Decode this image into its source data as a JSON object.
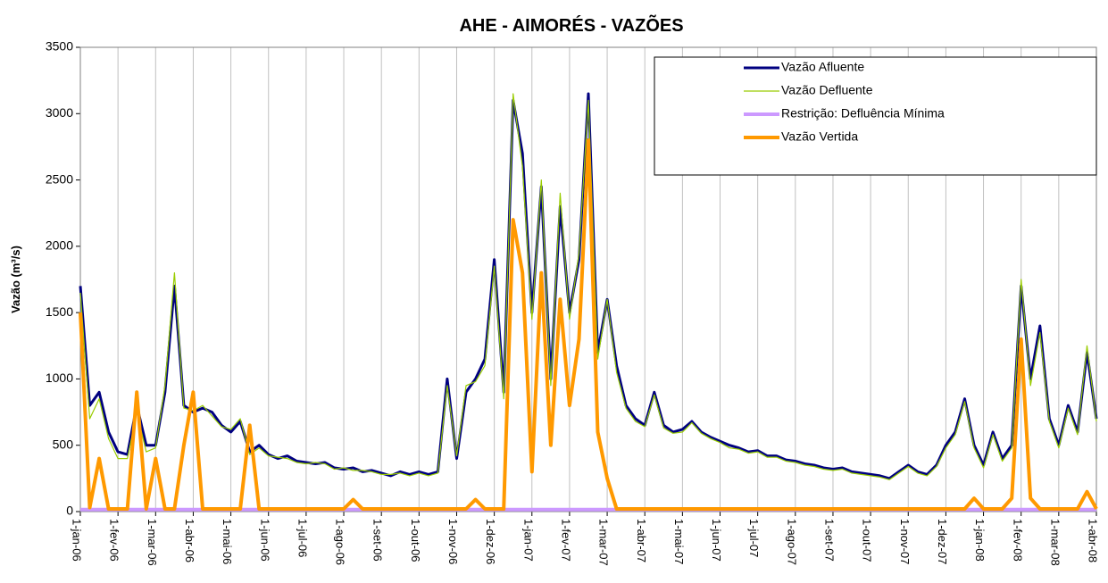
{
  "chart_data": {
    "type": "line",
    "title": "AHE - AIMORÉS - VAZÕES",
    "y_label": "Vazão (m³/s)",
    "categories": [
      "1-jan-06",
      null,
      null,
      null,
      "1-fev-06",
      null,
      null,
      null,
      "1-mar-06",
      null,
      null,
      null,
      "1-abr-06",
      null,
      null,
      null,
      "1-mai-06",
      null,
      null,
      null,
      "1-jun-06",
      null,
      null,
      null,
      "1-jul-06",
      null,
      null,
      null,
      "1-ago-06",
      null,
      null,
      null,
      "1-set-06",
      null,
      null,
      null,
      "1-out-06",
      null,
      null,
      null,
      "1-nov-06",
      null,
      null,
      null,
      "1-dez-06",
      null,
      null,
      null,
      "1-jan-07",
      null,
      null,
      null,
      "1-fev-07",
      null,
      null,
      null,
      "1-mar-07",
      null,
      null,
      null,
      "1-abr-07",
      null,
      null,
      null,
      "1-mai-07",
      null,
      null,
      null,
      "1-jun-07",
      null,
      null,
      null,
      "1-jul-07",
      null,
      null,
      null,
      "1-ago-07",
      null,
      null,
      null,
      "1-set-07",
      null,
      null,
      null,
      "1-out-07",
      null,
      null,
      null,
      "1-nov-07",
      null,
      null,
      null,
      "1-dez-07",
      null,
      null,
      null,
      "1-jan-08",
      null,
      null,
      null,
      "1-fev-08",
      null,
      null,
      null,
      "1-mar-08",
      null,
      null,
      null,
      "1-abr-08"
    ],
    "series": [
      {
        "name": "Vazão Afluente",
        "color": "#000080",
        "width": 3,
        "values": [
          1700,
          800,
          900,
          600,
          450,
          430,
          800,
          500,
          500,
          900,
          1700,
          800,
          750,
          780,
          750,
          650,
          600,
          680,
          450,
          500,
          430,
          400,
          420,
          380,
          370,
          360,
          370,
          330,
          320,
          330,
          300,
          310,
          290,
          270,
          300,
          280,
          300,
          280,
          300,
          1000,
          400,
          900,
          1000,
          1150,
          1900,
          900,
          3100,
          2700,
          1500,
          2450,
          1000,
          2300,
          1500,
          1900,
          3150,
          1200,
          1600,
          1100,
          800,
          700,
          650,
          900,
          650,
          600,
          620,
          680,
          600,
          560,
          530,
          500,
          480,
          450,
          460,
          420,
          420,
          390,
          380,
          360,
          350,
          330,
          320,
          330,
          300,
          290,
          280,
          270,
          250,
          300,
          350,
          300,
          280,
          350,
          500,
          600,
          850,
          500,
          350,
          600,
          400,
          500,
          1700,
          1000,
          1400,
          700,
          500,
          800,
          600,
          1200,
          700
        ]
      },
      {
        "name": "Vazão Defluente",
        "color": "#99cc00",
        "width": 1.2,
        "values": [
          1650,
          700,
          850,
          550,
          400,
          400,
          750,
          450,
          480,
          950,
          1800,
          780,
          760,
          800,
          720,
          640,
          620,
          700,
          430,
          480,
          420,
          410,
          400,
          370,
          360,
          370,
          360,
          320,
          330,
          310,
          310,
          300,
          280,
          280,
          290,
          270,
          290,
          270,
          290,
          950,
          420,
          950,
          980,
          1100,
          1850,
          850,
          3150,
          2600,
          1450,
          2500,
          950,
          2400,
          1450,
          1950,
          3100,
          1150,
          1600,
          1050,
          780,
          680,
          640,
          880,
          630,
          590,
          600,
          670,
          590,
          550,
          520,
          480,
          470,
          440,
          450,
          410,
          410,
          380,
          370,
          350,
          340,
          320,
          310,
          320,
          290,
          280,
          270,
          260,
          240,
          290,
          340,
          290,
          270,
          340,
          480,
          580,
          830,
          480,
          330,
          580,
          380,
          480,
          1750,
          950,
          1350,
          680,
          480,
          780,
          580,
          1250,
          680
        ]
      },
      {
        "name": "Restrição: Defluência Mínima",
        "color": "#cc99ff",
        "width": 4,
        "values": [
          15,
          15,
          15,
          15,
          15,
          15,
          15,
          15,
          15,
          15,
          15,
          15,
          15,
          15,
          15,
          15,
          15,
          15,
          15,
          15,
          15,
          15,
          15,
          15,
          15,
          15,
          15,
          15,
          15,
          15,
          15,
          15,
          15,
          15,
          15,
          15,
          15,
          15,
          15,
          15,
          15,
          15,
          15,
          15,
          15,
          15,
          15,
          15,
          15,
          15,
          15,
          15,
          15,
          15,
          15,
          15,
          15,
          15,
          15,
          15,
          15,
          15,
          15,
          15,
          15,
          15,
          15,
          15,
          15,
          15,
          15,
          15,
          15,
          15,
          15,
          15,
          15,
          15,
          15,
          15,
          15,
          15,
          15,
          15,
          15,
          15,
          15,
          15,
          15,
          15,
          15,
          15,
          15,
          15,
          15,
          15,
          15,
          15,
          15,
          15,
          15,
          15,
          15,
          15,
          15,
          15,
          15,
          15,
          15
        ]
      },
      {
        "name": "Vazão Vertida",
        "color": "#ff9900",
        "width": 4,
        "values": [
          1500,
          30,
          400,
          20,
          20,
          20,
          900,
          20,
          400,
          20,
          20,
          500,
          900,
          20,
          20,
          20,
          20,
          20,
          650,
          20,
          20,
          20,
          20,
          20,
          20,
          20,
          20,
          20,
          20,
          90,
          20,
          20,
          20,
          20,
          20,
          20,
          20,
          20,
          20,
          20,
          20,
          20,
          90,
          20,
          20,
          20,
          2200,
          1800,
          300,
          1800,
          500,
          1600,
          800,
          1300,
          2800,
          600,
          250,
          20,
          20,
          20,
          20,
          20,
          20,
          20,
          20,
          20,
          20,
          20,
          20,
          20,
          20,
          20,
          20,
          20,
          20,
          20,
          20,
          20,
          20,
          20,
          20,
          20,
          20,
          20,
          20,
          20,
          20,
          20,
          20,
          20,
          20,
          20,
          20,
          20,
          20,
          100,
          20,
          20,
          20,
          100,
          1300,
          100,
          20,
          20,
          20,
          20,
          20,
          150,
          20
        ]
      }
    ],
    "ylim": [
      0,
      3500
    ],
    "yticks": [
      0,
      500,
      1000,
      1500,
      2000,
      2500,
      3000,
      3500
    ],
    "xgrid": true
  }
}
